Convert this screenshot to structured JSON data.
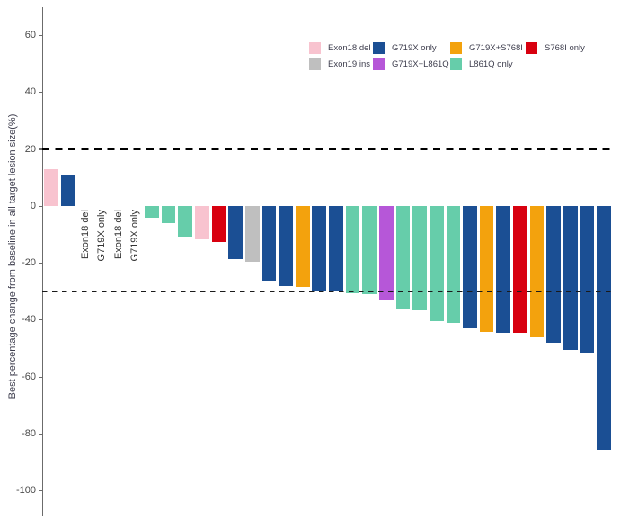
{
  "chart_data": {
    "type": "bar",
    "title": "",
    "ylabel": "Best percentage change from baseline in all target lesion size(%)",
    "ylim": [
      -105,
      72
    ],
    "yticks": [
      60,
      40,
      20,
      0,
      -20,
      -40,
      -60,
      -80,
      -100
    ],
    "grid": false,
    "legend_position": "top-right",
    "reference_lines": [
      {
        "y": 20,
        "style": "bold-dashed",
        "color": "#000000"
      },
      {
        "y": -30,
        "style": "thin-dashed",
        "color": "#1a1a1a"
      }
    ],
    "groups": [
      {
        "name": "Exon18 del",
        "color": "#F8C3CF"
      },
      {
        "name": "G719X only",
        "color": "#1B4F94"
      },
      {
        "name": "G719X+S768I",
        "color": "#F3A20D"
      },
      {
        "name": "S768I only",
        "color": "#D8000F"
      },
      {
        "name": "Exon19 ins",
        "color": "#BFBFBF"
      },
      {
        "name": "G719X+L861Q",
        "color": "#B657D8"
      },
      {
        "name": "L861Q only",
        "color": "#66CDAA"
      }
    ],
    "bars": [
      {
        "group": "Exon18 del",
        "value": 13
      },
      {
        "group": "G719X only",
        "value": 11
      },
      {
        "group": "Exon18 del",
        "value": 0,
        "text_label": "Exon18 del"
      },
      {
        "group": "G719X only",
        "value": 0,
        "text_label": "G719X only"
      },
      {
        "group": "Exon18 del",
        "value": 0,
        "text_label": "Exon18 del"
      },
      {
        "group": "G719X only",
        "value": 0,
        "text_label": "G719X only"
      },
      {
        "group": "L861Q only",
        "value": -4
      },
      {
        "group": "L861Q only",
        "value": -6
      },
      {
        "group": "L861Q only",
        "value": -10.5
      },
      {
        "group": "Exon18 del",
        "value": -11.5
      },
      {
        "group": "S768I only",
        "value": -12.5
      },
      {
        "group": "G719X only",
        "value": -18.5
      },
      {
        "group": "Exon19 ins",
        "value": -19.5
      },
      {
        "group": "G719X only",
        "value": -26
      },
      {
        "group": "G719X only",
        "value": -28
      },
      {
        "group": "G719X+S768I",
        "value": -28.5
      },
      {
        "group": "G719X only",
        "value": -29.5
      },
      {
        "group": "G719X only",
        "value": -29.5
      },
      {
        "group": "L861Q only",
        "value": -30.5
      },
      {
        "group": "L861Q only",
        "value": -31
      },
      {
        "group": "G719X+L861Q",
        "value": -33
      },
      {
        "group": "L861Q only",
        "value": -36
      },
      {
        "group": "L861Q only",
        "value": -36.5
      },
      {
        "group": "L861Q only",
        "value": -40.5
      },
      {
        "group": "L861Q only",
        "value": -41
      },
      {
        "group": "G719X only",
        "value": -43
      },
      {
        "group": "G719X+S768I",
        "value": -44
      },
      {
        "group": "G719X only",
        "value": -44.5
      },
      {
        "group": "S768I only",
        "value": -44.5
      },
      {
        "group": "G719X+S768I",
        "value": -46
      },
      {
        "group": "G719X only",
        "value": -48
      },
      {
        "group": "G719X only",
        "value": -50.5
      },
      {
        "group": "G719X only",
        "value": -51.5
      },
      {
        "group": "G719X only",
        "value": -85.5
      }
    ]
  }
}
